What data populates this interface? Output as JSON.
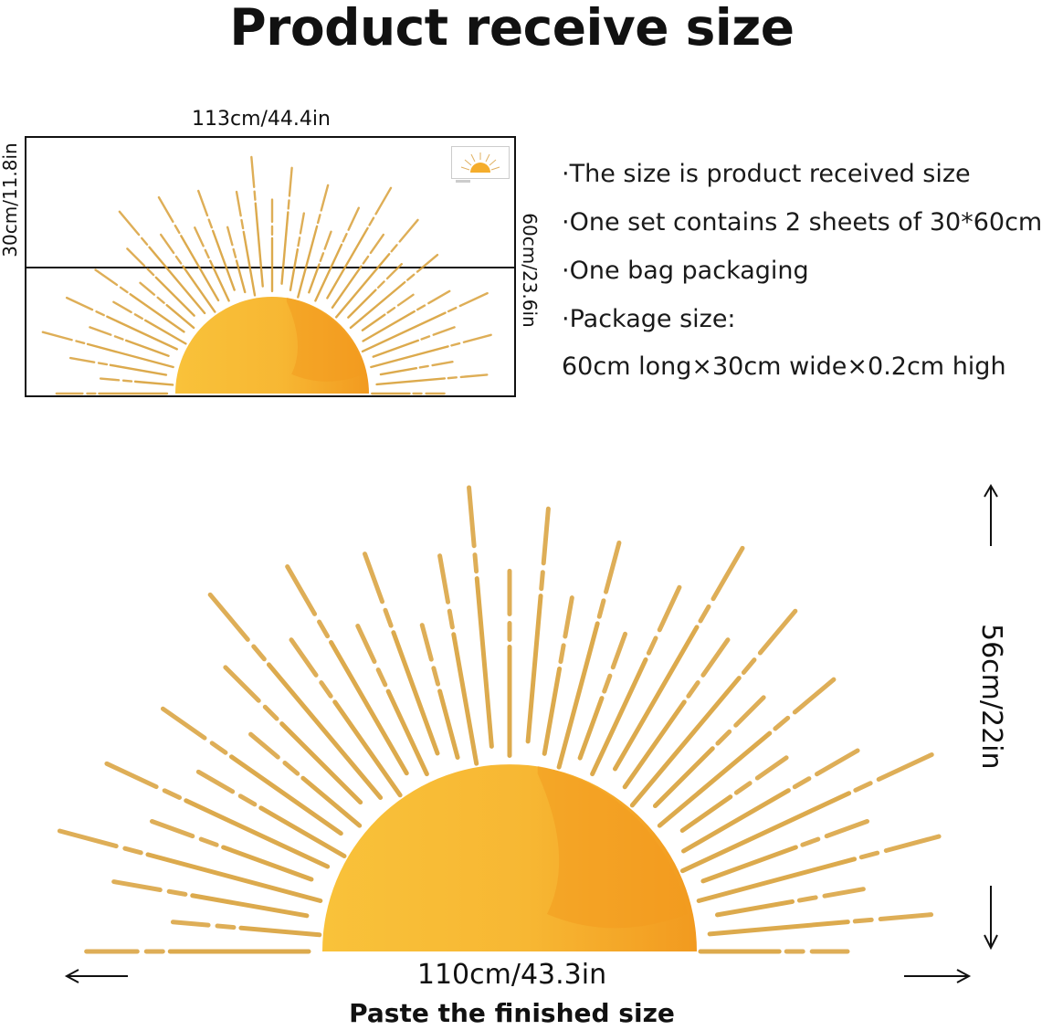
{
  "title": "Product receive size",
  "preview": {
    "width_label": "113cm/44.4in",
    "sheet_height_label": "30cm/11.8in",
    "total_height_label": "60cm/23.6in"
  },
  "info": {
    "line1": "·The size is product received size",
    "line2": "·One set contains 2 sheets of 30*60cm",
    "line3": "·One bag packaging",
    "line4": "·Package size:",
    "line5": "60cm long×30cm wide×0.2cm high"
  },
  "finished": {
    "height_label": "56cm/22in",
    "width_label": "110cm/43.3in",
    "caption": "Paste the finished size"
  },
  "colors": {
    "ray_gold": "#d9a13a",
    "sun_light": "#f7b733",
    "sun_dark": "#f29a1f"
  }
}
